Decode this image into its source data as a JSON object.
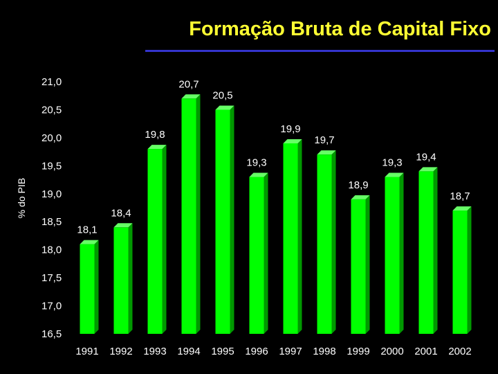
{
  "chart_data": {
    "type": "bar",
    "title": "Formação Bruta de Capital Fixo",
    "ylabel": "% do PIB",
    "xlabel": "",
    "categories": [
      "1991",
      "1992",
      "1993",
      "1994",
      "1995",
      "1996",
      "1997",
      "1998",
      "1999",
      "2000",
      "2001",
      "2002"
    ],
    "values": [
      18.1,
      18.4,
      19.8,
      20.7,
      20.5,
      19.3,
      19.9,
      19.7,
      18.9,
      19.3,
      19.4,
      18.7
    ],
    "value_labels": [
      "18,1",
      "18,4",
      "19,8",
      "20,7",
      "20,5",
      "19,3",
      "19,9",
      "19,7",
      "18,9",
      "19,3",
      "19,4",
      "18,7"
    ],
    "ylim": [
      16.5,
      21.0
    ],
    "yticks": [
      16.5,
      17.0,
      17.5,
      18.0,
      18.5,
      19.0,
      19.5,
      20.0,
      20.5,
      21.0
    ],
    "ytick_labels": [
      "16,5",
      "17,0",
      "17,5",
      "18,0",
      "18,5",
      "19,0",
      "19,5",
      "20,0",
      "20,5",
      "21,0"
    ],
    "grid": false,
    "colors": {
      "background": "#000000",
      "bar": "#00ff00",
      "bar_side": "#009900",
      "bar_top": "#66ff66",
      "title": "#ffff33",
      "title_rule": "#3333cc",
      "text": "#ffffff",
      "footnote": "#444444"
    }
  }
}
